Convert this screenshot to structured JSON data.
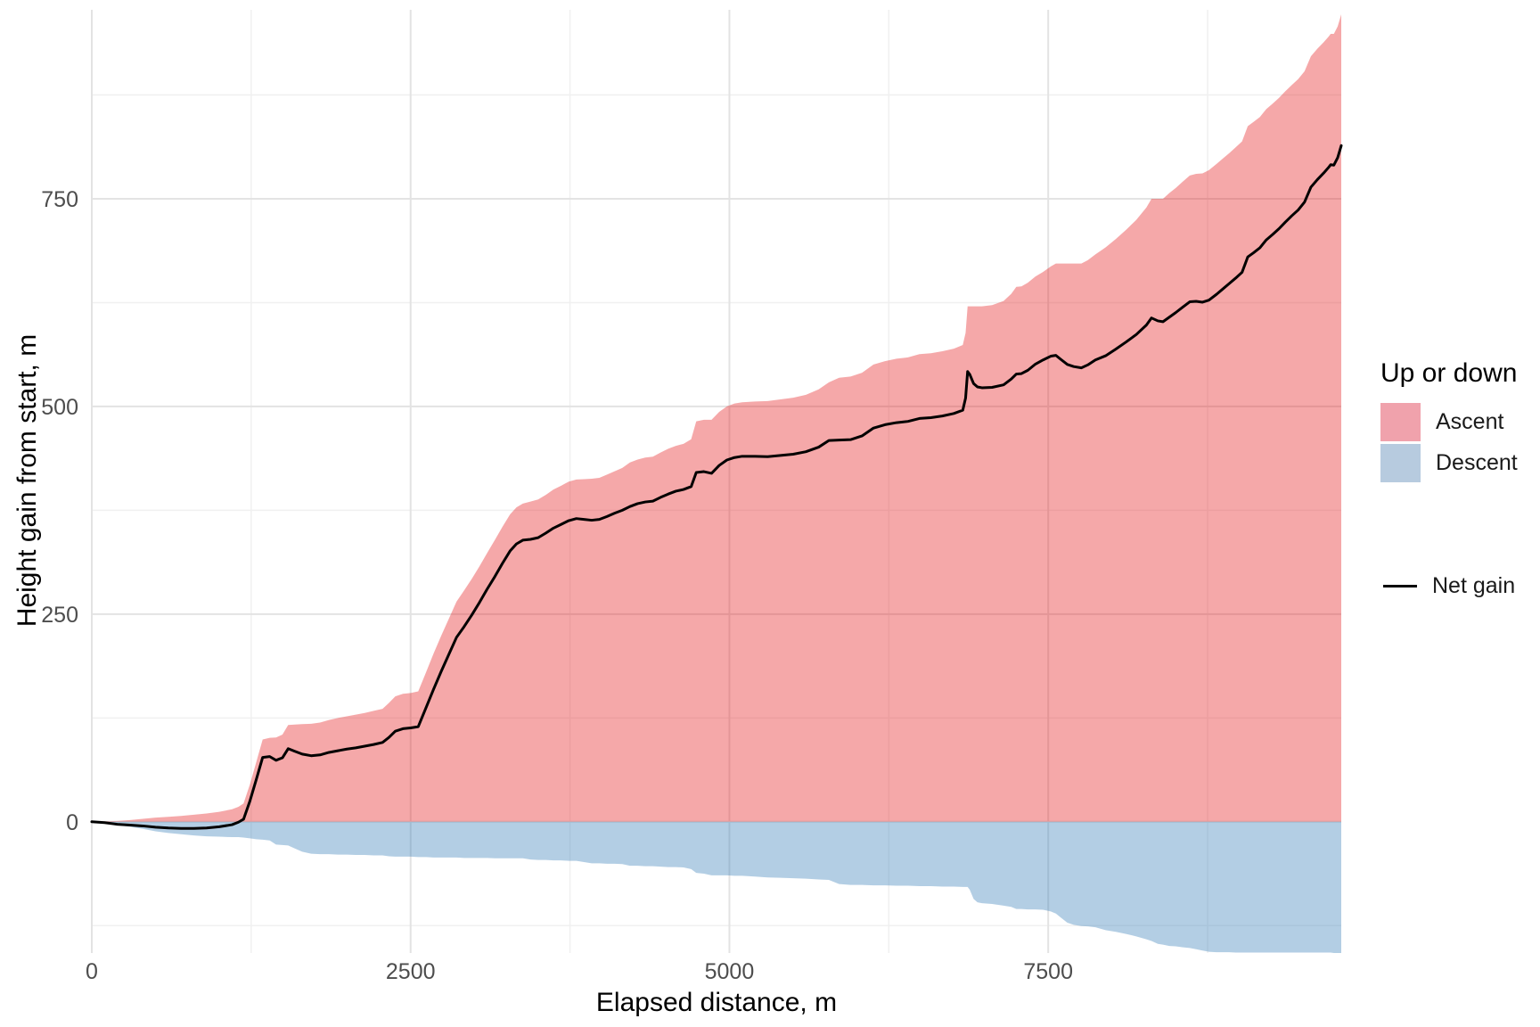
{
  "axes": {
    "x": {
      "title": "Elapsed distance, m",
      "ticks": [
        {
          "value": 0,
          "label": "0"
        },
        {
          "value": 2500,
          "label": "2500"
        },
        {
          "value": 5000,
          "label": "5000"
        },
        {
          "value": 7500,
          "label": "7500"
        }
      ],
      "minor": [
        1250,
        3750,
        6250,
        8750
      ]
    },
    "y": {
      "title": "Height gain from start, m",
      "ticks": [
        {
          "value": 0,
          "label": "0"
        },
        {
          "value": 250,
          "label": "250"
        },
        {
          "value": 500,
          "label": "500"
        },
        {
          "value": 750,
          "label": "750"
        }
      ],
      "minor": [
        -125,
        125,
        375,
        625,
        875
      ]
    }
  },
  "legend": {
    "title": "Up or down",
    "fill_items": [
      {
        "label": "Ascent",
        "color": "#F0A2AC"
      },
      {
        "label": "Descent",
        "color": "#B7CBDF"
      }
    ],
    "line_item": {
      "label": "Net gain",
      "color": "#000000"
    }
  },
  "chart_data": {
    "type": "area",
    "title": "",
    "xlabel": "Elapsed distance, m",
    "ylabel": "Height gain from start, m",
    "legend_position": "right",
    "grid": true,
    "x_domain": [
      0,
      9798
    ],
    "y_domain": [
      -158,
      977.5
    ],
    "colors": {
      "ascent_fill": "#E41A1C",
      "descent_fill": "#377EB8",
      "area_alpha": 0.38,
      "net_line": "#000000",
      "grid_major": "#E3E3E3",
      "grid_minor": "#F0F0F0"
    },
    "x": [
      0,
      100,
      200,
      300,
      400,
      500,
      600,
      700,
      800,
      900,
      1000,
      1100,
      1150,
      1190,
      1240,
      1290,
      1340,
      1395,
      1445,
      1495,
      1540,
      1590,
      1650,
      1720,
      1790,
      1860,
      1930,
      2000,
      2070,
      2140,
      2210,
      2280,
      2330,
      2380,
      2440,
      2500,
      2560,
      2620,
      2680,
      2740,
      2800,
      2860,
      2920,
      2980,
      3040,
      3100,
      3160,
      3220,
      3280,
      3330,
      3380,
      3440,
      3500,
      3560,
      3620,
      3680,
      3740,
      3800,
      3860,
      3920,
      3980,
      4040,
      4100,
      4160,
      4220,
      4280,
      4340,
      4400,
      4460,
      4520,
      4580,
      4640,
      4700,
      4740,
      4800,
      4860,
      4920,
      4980,
      5040,
      5100,
      5200,
      5300,
      5400,
      5500,
      5600,
      5700,
      5780,
      5860,
      5950,
      6040,
      6130,
      6220,
      6310,
      6400,
      6490,
      6580,
      6670,
      6760,
      6830,
      6852,
      6868,
      6885,
      6915,
      6945,
      6980,
      7060,
      7150,
      7210,
      7250,
      7290,
      7340,
      7400,
      7460,
      7520,
      7560,
      7600,
      7650,
      7700,
      7760,
      7810,
      7870,
      7950,
      8030,
      8110,
      8190,
      8270,
      8310,
      8360,
      8400,
      8450,
      8500,
      8550,
      8610,
      8660,
      8710,
      8760,
      8820,
      8870,
      8920,
      8970,
      9020,
      9065,
      9110,
      9160,
      9210,
      9260,
      9310,
      9360,
      9410,
      9460,
      9510,
      9560,
      9610,
      9660,
      9700,
      9715,
      9740,
      9770,
      9798
    ],
    "series": [
      {
        "name": "Ascent",
        "values": [
          0,
          0.5,
          1,
          2,
          3.5,
          5,
          6,
          7,
          8.5,
          10,
          12,
          15,
          18,
          22,
          45,
          72,
          99,
          101,
          101.5,
          105,
          116.5,
          117,
          117.5,
          118,
          119.5,
          122.5,
          125,
          127,
          129,
          131,
          133.5,
          136,
          143,
          151,
          154,
          155,
          157,
          179.5,
          202.5,
          224,
          244.5,
          265,
          278.5,
          292.5,
          307.5,
          323.5,
          339,
          355,
          370,
          378.5,
          383,
          385.5,
          388,
          393.5,
          400,
          404.5,
          409.5,
          412,
          412.5,
          413,
          414,
          418,
          422,
          426,
          432.5,
          436,
          438.5,
          439.5,
          444.5,
          449,
          452.5,
          455,
          460.5,
          482,
          484,
          484,
          493.5,
          500,
          503.5,
          505,
          506,
          506.5,
          508.5,
          510.5,
          514,
          520.5,
          529,
          534.5,
          536,
          540.5,
          550.5,
          554.5,
          557.5,
          559,
          563,
          564,
          566.5,
          569.5,
          574,
          588.5,
          620.5,
          620.5,
          620.5,
          620.5,
          620.5,
          622,
          627,
          635.5,
          644,
          644.5,
          649,
          656.5,
          662,
          668.5,
          672,
          672,
          672,
          672,
          672,
          676,
          683,
          691.5,
          701.5,
          712.5,
          724.5,
          739.5,
          750,
          750,
          750,
          757,
          763,
          770,
          778,
          780,
          780.5,
          784.5,
          792,
          798.5,
          805,
          812,
          819,
          837.5,
          842.5,
          848.5,
          858,
          864.5,
          871.5,
          879.5,
          887,
          894,
          903.5,
          921.5,
          930.5,
          938.5,
          945.5,
          948.5,
          948.5,
          957.5,
          972
        ]
      },
      {
        "name": "Descent",
        "values": [
          0,
          -1.5,
          -4,
          -6,
          -8.5,
          -11.5,
          -13.5,
          -15,
          -16.5,
          -17.5,
          -18,
          -18.5,
          -18.5,
          -19,
          -20,
          -21,
          -21.5,
          -22.5,
          -27.5,
          -28,
          -28.5,
          -32,
          -36,
          -38.5,
          -39,
          -39,
          -39.5,
          -39.5,
          -40,
          -40,
          -40.5,
          -40.5,
          -41.5,
          -42,
          -42,
          -42,
          -42.5,
          -42.5,
          -43,
          -43,
          -43,
          -43,
          -43.5,
          -43.5,
          -43.5,
          -43.5,
          -44,
          -44,
          -44,
          -44,
          -44,
          -45.5,
          -46,
          -46,
          -46.5,
          -46.5,
          -47,
          -47,
          -48.5,
          -50,
          -50,
          -50.5,
          -50.5,
          -51,
          -53,
          -53,
          -53.5,
          -53.5,
          -54,
          -54.5,
          -54.5,
          -55,
          -57,
          -61.5,
          -62.5,
          -64.5,
          -64.5,
          -64.5,
          -65,
          -65,
          -66,
          -67,
          -67.5,
          -68,
          -68.5,
          -69.5,
          -70,
          -75,
          -76,
          -76,
          -76.5,
          -76.5,
          -77,
          -77,
          -77.5,
          -77.5,
          -78,
          -78,
          -78.5,
          -78.5,
          -78.5,
          -82,
          -93,
          -97,
          -98,
          -99,
          -101,
          -102.5,
          -105,
          -105,
          -105.5,
          -105.5,
          -106,
          -108,
          -110.5,
          -115.5,
          -121.5,
          -124,
          -125.5,
          -126,
          -127,
          -130.5,
          -132.5,
          -135,
          -138,
          -141.5,
          -143.5,
          -147,
          -148,
          -149.5,
          -150,
          -151,
          -152,
          -153.5,
          -155,
          -156.5,
          -157,
          -157,
          -157,
          -157.5,
          -157.5,
          -157.5,
          -157.5,
          -157.5,
          -157.5,
          -157.5,
          -157.5,
          -157.5,
          -157.5,
          -157.5,
          -157.5,
          -157.5,
          -157.5,
          -157.5,
          -157.5,
          -157.5,
          -158,
          -158,
          -158
        ]
      },
      {
        "name": "Net gain",
        "values": [
          0,
          -1,
          -3,
          -4,
          -5,
          -6.5,
          -7.5,
          -8,
          -8,
          -7.5,
          -6,
          -3.5,
          -0.5,
          3,
          25,
          51,
          77.5,
          78.5,
          74,
          77,
          88,
          85,
          81.5,
          79.5,
          80.5,
          83.5,
          85.5,
          87.5,
          89,
          91,
          93,
          95.5,
          101.5,
          109,
          112,
          113,
          114.5,
          137,
          159.5,
          181,
          201.5,
          222,
          235,
          249,
          264,
          280,
          295,
          311,
          326,
          334.5,
          339,
          340,
          342,
          347.5,
          353.5,
          358,
          362.5,
          365,
          364,
          363,
          364,
          367.5,
          371.5,
          375,
          379.5,
          383,
          385,
          386,
          390.5,
          394.5,
          398,
          400,
          403.5,
          420.5,
          421.5,
          419.5,
          429,
          435.5,
          438.5,
          440,
          440,
          439.5,
          441,
          442.5,
          445.5,
          451,
          459,
          459.5,
          460,
          464.5,
          474,
          478,
          480.5,
          482,
          485.5,
          486.5,
          488.5,
          491.5,
          495.5,
          510,
          542,
          538.5,
          527.5,
          523.5,
          522.5,
          523,
          526,
          533,
          539,
          539.5,
          543.5,
          551,
          556,
          560.5,
          561.5,
          556.5,
          550.5,
          548,
          546.5,
          550,
          556,
          561,
          569,
          577.5,
          586.5,
          598,
          606.5,
          603,
          602,
          607.5,
          613,
          619,
          626,
          626.5,
          625.5,
          628,
          635,
          641.5,
          648,
          654.5,
          661.5,
          680,
          685,
          691,
          700.5,
          707,
          714,
          722,
          729.5,
          736.5,
          746,
          764,
          773,
          781,
          788,
          791,
          790.5,
          799.5,
          814
        ]
      }
    ]
  }
}
